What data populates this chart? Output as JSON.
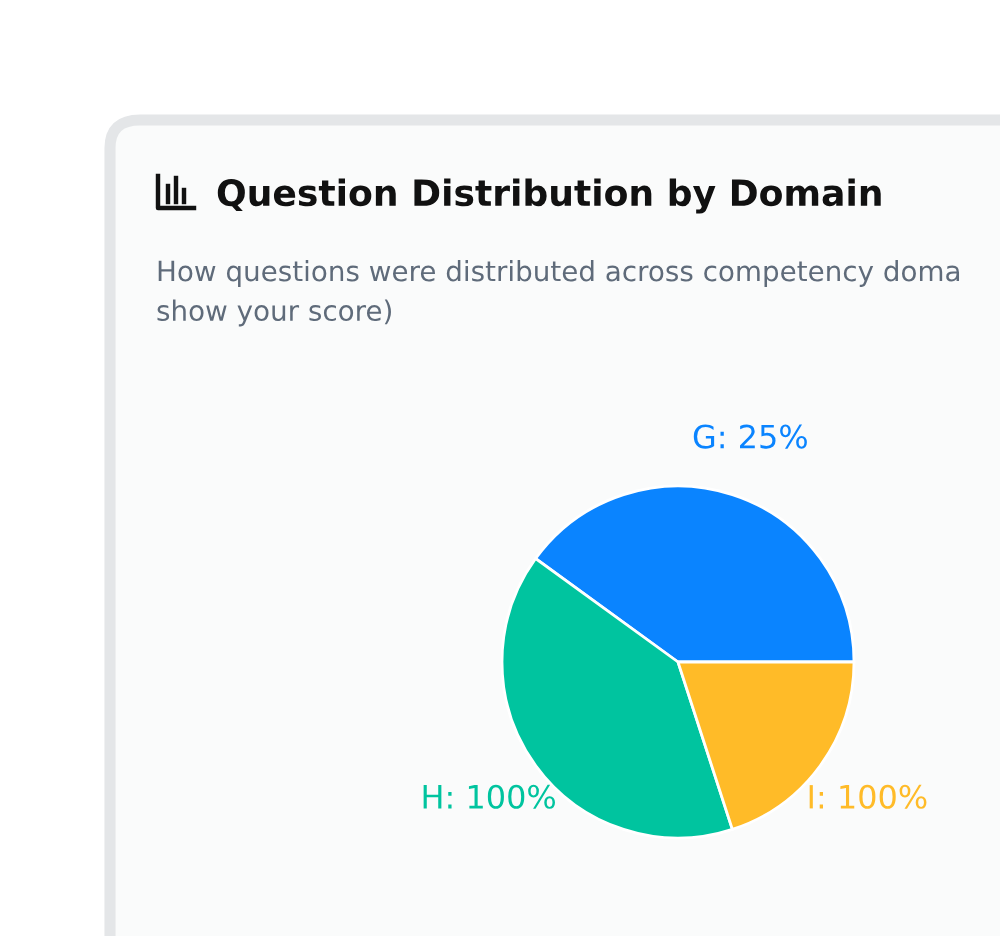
{
  "chart_data": {
    "type": "pie",
    "title": "Question Distribution by Domain",
    "subtitle": "How questions were distributed across competency doma\nshow your score)",
    "categories": [
      "G: 25%",
      "H: 100%",
      "I: 100%"
    ],
    "values": [
      40,
      40,
      20
    ],
    "colors": [
      "#0a84ff",
      "#00c49f",
      "#ffbb28"
    ],
    "legend": false
  }
}
